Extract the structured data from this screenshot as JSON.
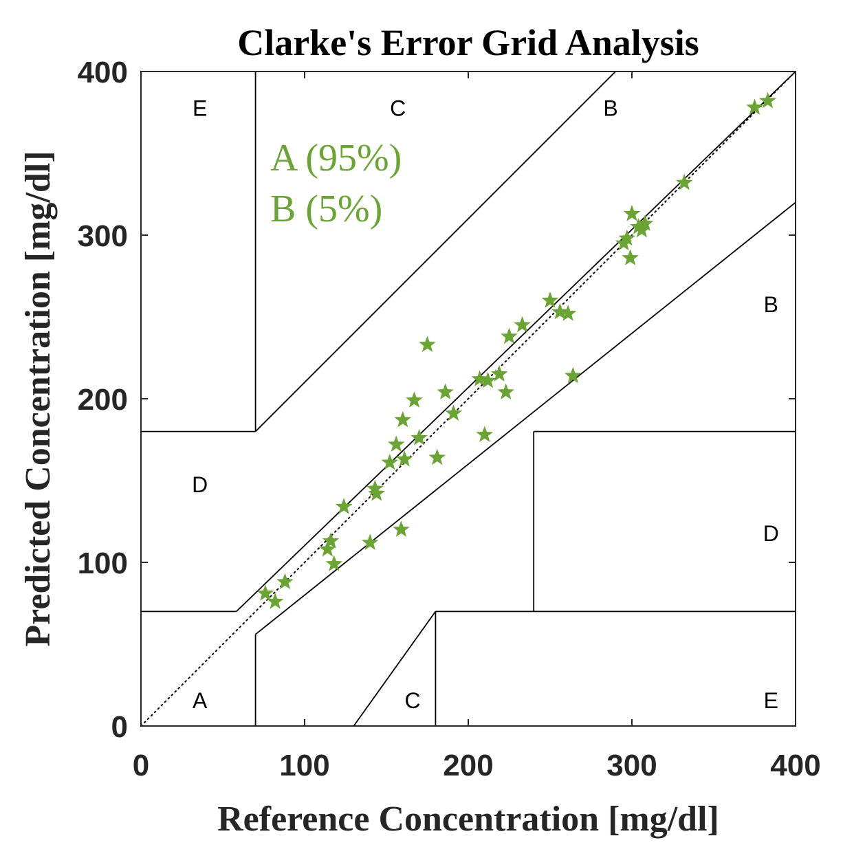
{
  "chart_data": {
    "type": "scatter",
    "title": "Clarke's Error Grid Analysis",
    "xlabel": "Reference Concentration [mg/dl]",
    "ylabel": "Predicted Concentration [mg/dl]",
    "xlim": [
      0,
      400
    ],
    "ylim": [
      0,
      400
    ],
    "xticks": [
      "0",
      "100",
      "200",
      "300",
      "400"
    ],
    "yticks": [
      "0",
      "100",
      "200",
      "300",
      "400"
    ],
    "grid": false,
    "marker": "star",
    "marker_color": "#6aa533",
    "annotations": [
      "A (95%)",
      "B (5%)"
    ],
    "zone_labels": [
      {
        "text": "E",
        "x": 36,
        "y": 378
      },
      {
        "text": "C",
        "x": 157,
        "y": 378
      },
      {
        "text": "B",
        "x": 287,
        "y": 378
      },
      {
        "text": "D",
        "x": 36,
        "y": 148
      },
      {
        "text": "B",
        "x": 385,
        "y": 258
      },
      {
        "text": "D",
        "x": 385,
        "y": 118
      },
      {
        "text": "A",
        "x": 36,
        "y": 16
      },
      {
        "text": "C",
        "x": 166,
        "y": 16
      },
      {
        "text": "E",
        "x": 385,
        "y": 16
      }
    ],
    "zone_boundaries": [
      {
        "x": [
          70,
          70
        ],
        "y": [
          400,
          180
        ]
      },
      {
        "x": [
          0,
          70
        ],
        "y": [
          180,
          180
        ]
      },
      {
        "x": [
          70,
          290
        ],
        "y": [
          180,
          400
        ]
      },
      {
        "x": [
          0,
          58.3
        ],
        "y": [
          70,
          70
        ]
      },
      {
        "x": [
          58.3,
          400
        ],
        "y": [
          70,
          400
        ]
      },
      {
        "x": [
          70,
          70
        ],
        "y": [
          0,
          56
        ]
      },
      {
        "x": [
          70,
          400
        ],
        "y": [
          56,
          320
        ]
      },
      {
        "x": [
          130,
          180
        ],
        "y": [
          0,
          70
        ]
      },
      {
        "x": [
          180,
          180
        ],
        "y": [
          0,
          70
        ]
      },
      {
        "x": [
          180,
          400
        ],
        "y": [
          70,
          70
        ]
      },
      {
        "x": [
          240,
          240
        ],
        "y": [
          70,
          180
        ]
      },
      {
        "x": [
          240,
          400
        ],
        "y": [
          180,
          180
        ]
      }
    ],
    "identity_line": {
      "x": [
        0,
        400
      ],
      "y": [
        0,
        400
      ]
    },
    "series": [
      {
        "points": [
          {
            "x": 76,
            "y": 81
          },
          {
            "x": 82,
            "y": 76
          },
          {
            "x": 88,
            "y": 88
          },
          {
            "x": 114,
            "y": 108
          },
          {
            "x": 116,
            "y": 113
          },
          {
            "x": 118,
            "y": 99
          },
          {
            "x": 124,
            "y": 134
          },
          {
            "x": 140,
            "y": 112
          },
          {
            "x": 143,
            "y": 145
          },
          {
            "x": 144,
            "y": 142
          },
          {
            "x": 152,
            "y": 161
          },
          {
            "x": 156,
            "y": 172
          },
          {
            "x": 159,
            "y": 120
          },
          {
            "x": 160,
            "y": 187
          },
          {
            "x": 161,
            "y": 163
          },
          {
            "x": 167,
            "y": 199
          },
          {
            "x": 170,
            "y": 176
          },
          {
            "x": 175,
            "y": 233
          },
          {
            "x": 181,
            "y": 164
          },
          {
            "x": 186,
            "y": 204
          },
          {
            "x": 191,
            "y": 191
          },
          {
            "x": 207,
            "y": 212
          },
          {
            "x": 210,
            "y": 178
          },
          {
            "x": 212,
            "y": 211
          },
          {
            "x": 219,
            "y": 215
          },
          {
            "x": 223,
            "y": 204
          },
          {
            "x": 225,
            "y": 238
          },
          {
            "x": 233,
            "y": 245
          },
          {
            "x": 250,
            "y": 260
          },
          {
            "x": 256,
            "y": 253
          },
          {
            "x": 261,
            "y": 252
          },
          {
            "x": 264,
            "y": 214
          },
          {
            "x": 295,
            "y": 295
          },
          {
            "x": 297,
            "y": 298
          },
          {
            "x": 299,
            "y": 286
          },
          {
            "x": 300,
            "y": 313
          },
          {
            "x": 304,
            "y": 305
          },
          {
            "x": 306,
            "y": 303
          },
          {
            "x": 308,
            "y": 307
          },
          {
            "x": 332,
            "y": 332
          },
          {
            "x": 375,
            "y": 378
          },
          {
            "x": 383,
            "y": 382
          }
        ]
      }
    ]
  }
}
